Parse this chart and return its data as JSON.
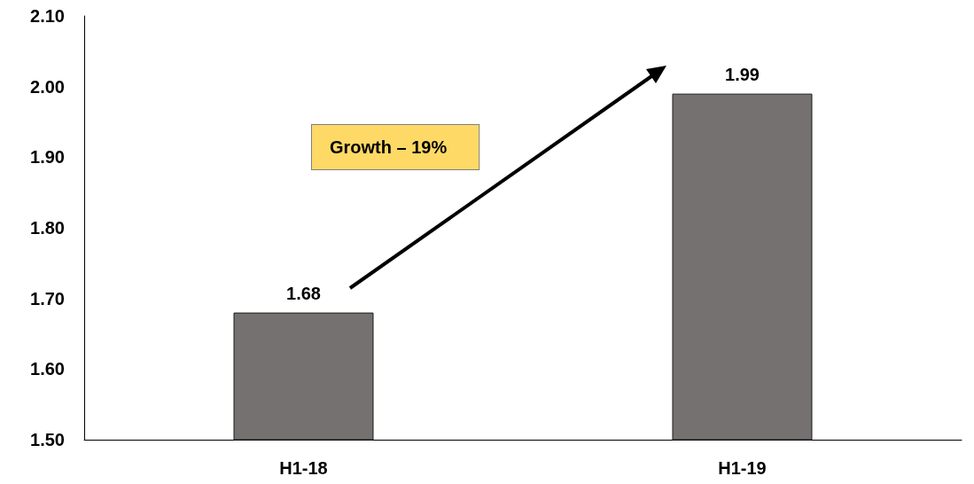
{
  "chart_data": {
    "type": "bar",
    "categories": [
      "H1-18",
      "H1-19"
    ],
    "values": [
      1.68,
      1.99
    ],
    "color": "#767171",
    "ylim": [
      1.5,
      2.1
    ],
    "yticks": [
      {
        "value": 1.5,
        "label": "1.50"
      },
      {
        "value": 1.6,
        "label": "1.60"
      },
      {
        "value": 1.7,
        "label": "1.70"
      },
      {
        "value": 1.8,
        "label": "1.80"
      },
      {
        "value": 1.9,
        "label": "1.90"
      },
      {
        "value": 2.0,
        "label": "2.00"
      },
      {
        "value": 2.1,
        "label": "2.10"
      }
    ],
    "data_labels": true,
    "grid": false,
    "annotations": [
      "Growth – 19%"
    ]
  }
}
